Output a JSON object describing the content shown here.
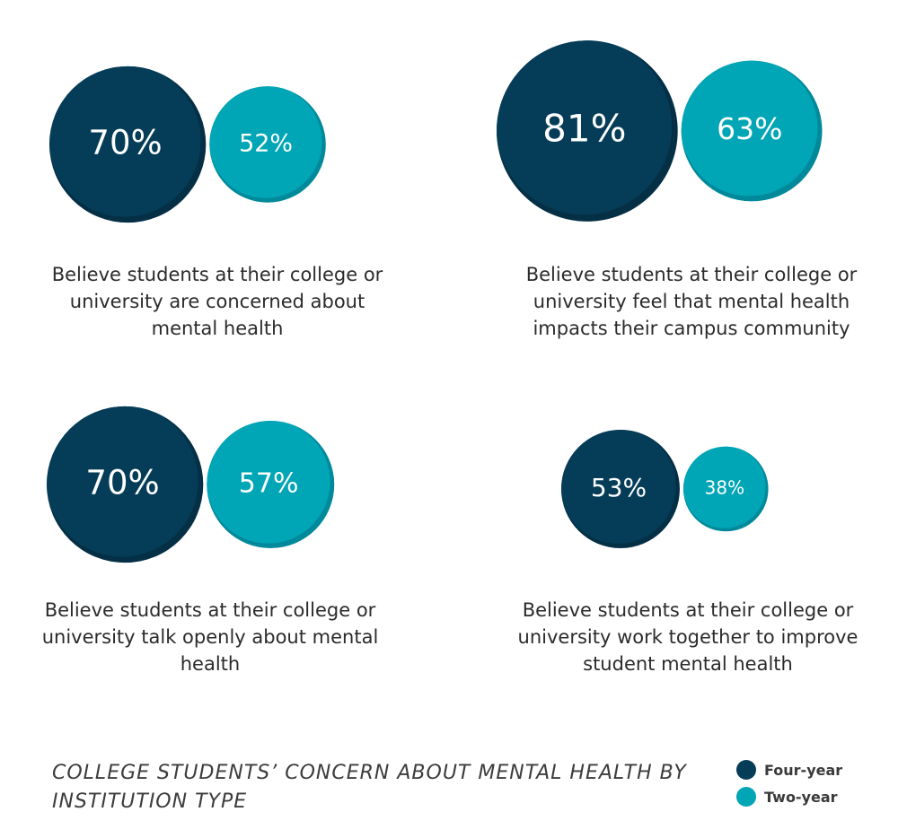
{
  "chart_data": [
    {
      "type": "bubble",
      "series": [
        {
          "name": "Four-year",
          "value": 70,
          "label": "70%"
        },
        {
          "name": "Two-year",
          "value": 52,
          "label": "52%"
        }
      ],
      "caption": "Believe students at their college or university are concerned about mental health"
    },
    {
      "type": "bubble",
      "series": [
        {
          "name": "Four-year",
          "value": 81,
          "label": "81%"
        },
        {
          "name": "Two-year",
          "value": 63,
          "label": "63%"
        }
      ],
      "caption": "Believe students at their college or university feel that mental health impacts their campus community"
    },
    {
      "type": "bubble",
      "series": [
        {
          "name": "Four-year",
          "value": 70,
          "label": "70%"
        },
        {
          "name": "Two-year",
          "value": 57,
          "label": "57%"
        }
      ],
      "caption": "Believe students at their college or university talk openly about mental health"
    },
    {
      "type": "bubble",
      "series": [
        {
          "name": "Four-year",
          "value": 53,
          "label": "53%"
        },
        {
          "name": "Two-year",
          "value": 38,
          "label": "38%"
        }
      ],
      "caption": "Believe students at their college or university work together to improve student mental health"
    }
  ],
  "title": "COLLEGE STUDENTS’ CONCERN ABOUT MENTAL HEALTH BY INSTITUTION TYPE",
  "legend": {
    "placement": "bottom-right",
    "items": [
      {
        "label": "Four-year",
        "color": "#053d58"
      },
      {
        "label": "Two-year",
        "color": "#00a5b6"
      }
    ]
  },
  "colors": {
    "four_year": "#053d58",
    "four_year_shade": "#042f45",
    "two_year": "#00a5b6",
    "two_year_shade": "#00899a",
    "label_text": "#ffffff"
  }
}
